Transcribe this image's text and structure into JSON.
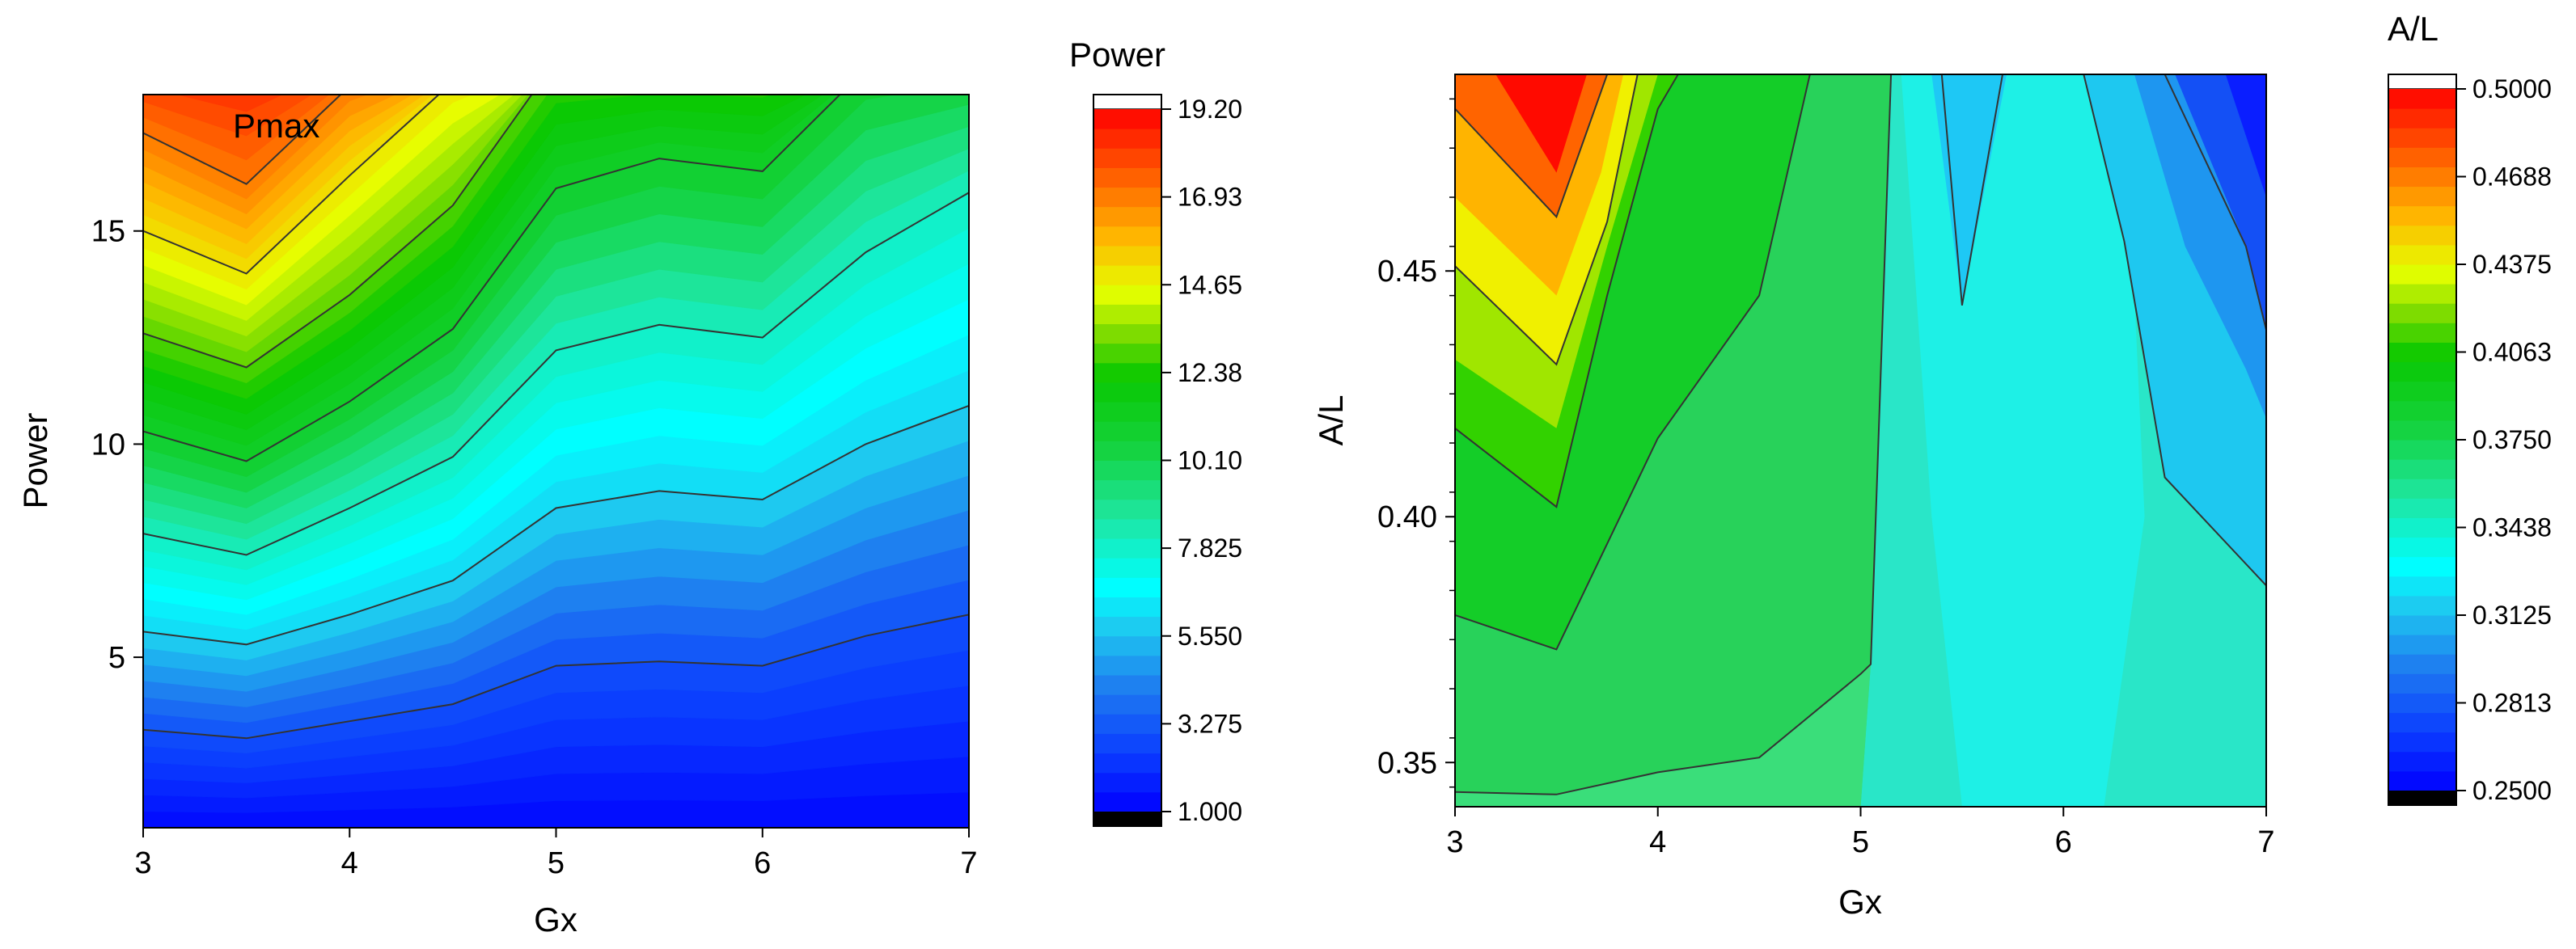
{
  "chart_data": [
    {
      "type": "heatmap",
      "subtype": "filled-contour",
      "xlabel": "Gx",
      "ylabel": "Power",
      "xlim": [
        3,
        7
      ],
      "ylim": [
        1,
        18.2
      ],
      "xticks": [
        "3",
        "4",
        "5",
        "6",
        "7"
      ],
      "yticks": [
        "5",
        "10",
        "15"
      ],
      "annotation": "Pmax",
      "colorbar": {
        "title": "Power",
        "ticks": [
          "1.000",
          "3.275",
          "5.550",
          "7.825",
          "10.10",
          "12.38",
          "14.65",
          "16.93",
          "19.20"
        ],
        "range": [
          1.0,
          19.2
        ]
      },
      "x": [
        3,
        3.5,
        4,
        4.5,
        5,
        5.5,
        6,
        6.5,
        7
      ],
      "contour_lines": [
        {
          "level": 3,
          "y": [
            3.3,
            3.1,
            3.5,
            3.9,
            4.8,
            4.9,
            4.8,
            5.5,
            6.0
          ]
        },
        {
          "level": 6,
          "y": [
            5.6,
            5.3,
            6.0,
            6.8,
            8.5,
            8.9,
            8.7,
            10.0,
            10.9
          ]
        },
        {
          "level": 8,
          "y": [
            7.9,
            7.4,
            8.5,
            9.7,
            12.2,
            12.8,
            12.5,
            14.5,
            15.9
          ]
        },
        {
          "level": 11,
          "y": [
            10.3,
            9.6,
            11.0,
            12.7,
            16.0,
            16.7,
            16.4,
            18.8,
            19.0
          ]
        },
        {
          "level": 13,
          "y": [
            12.6,
            11.8,
            13.5,
            15.6,
            19.0,
            19.0,
            19.0,
            19.0,
            19.0
          ]
        },
        {
          "level": 15,
          "y": [
            15.0,
            14.0,
            16.3,
            18.5,
            19.0,
            19.0,
            19.0,
            19.0,
            19.0
          ]
        },
        {
          "level": 17,
          "y": [
            17.3,
            16.1,
            18.4,
            19.0,
            19.0,
            19.0,
            19.0,
            19.0,
            19.0
          ]
        }
      ]
    },
    {
      "type": "heatmap",
      "subtype": "filled-contour",
      "xlabel": "Gx",
      "ylabel": "A/L",
      "xlim": [
        3,
        7
      ],
      "ylim": [
        0.341,
        0.49
      ],
      "xticks": [
        "3",
        "4",
        "5",
        "6",
        "7"
      ],
      "yticks": [
        "0.35",
        "0.40",
        "0.45"
      ],
      "colorbar": {
        "title": "A/L",
        "ticks": [
          "0.2500",
          "0.2813",
          "0.3125",
          "0.3438",
          "0.3750",
          "0.4063",
          "0.4375",
          "0.4688",
          "0.5000"
        ],
        "range": [
          0.25,
          0.5
        ]
      },
      "contour_lines": [
        {
          "points": [
            [
              3,
              0.344
            ],
            [
              3.5,
              0.3435
            ],
            [
              4,
              0.348
            ],
            [
              4.5,
              0.351
            ],
            [
              5,
              0.368
            ],
            [
              5.05,
              0.37
            ],
            [
              5.15,
              0.49
            ]
          ]
        },
        {
          "points": [
            [
              3,
              0.38
            ],
            [
              3.5,
              0.373
            ],
            [
              4,
              0.416
            ],
            [
              4.5,
              0.445
            ],
            [
              4.75,
              0.49
            ]
          ]
        },
        {
          "points": [
            [
              3,
              0.418
            ],
            [
              3.5,
              0.402
            ],
            [
              3.75,
              0.445
            ],
            [
              4,
              0.483
            ],
            [
              4.1,
              0.49
            ]
          ]
        },
        {
          "points": [
            [
              3,
              0.451
            ],
            [
              3.5,
              0.431
            ],
            [
              3.75,
              0.46
            ],
            [
              3.9,
              0.49
            ]
          ]
        },
        {
          "points": [
            [
              3,
              0.483
            ],
            [
              3.5,
              0.461
            ],
            [
              3.75,
              0.49
            ]
          ]
        },
        {
          "points": [
            [
              5.4,
              0.49
            ],
            [
              5.5,
              0.443
            ],
            [
              5.7,
              0.49
            ]
          ]
        },
        {
          "points": [
            [
              6.1,
              0.49
            ],
            [
              6.3,
              0.456
            ],
            [
              6.5,
              0.408
            ],
            [
              7,
              0.386
            ]
          ]
        },
        {
          "points": [
            [
              6.5,
              0.49
            ],
            [
              6.9,
              0.455
            ],
            [
              7,
              0.438
            ]
          ]
        }
      ]
    }
  ]
}
